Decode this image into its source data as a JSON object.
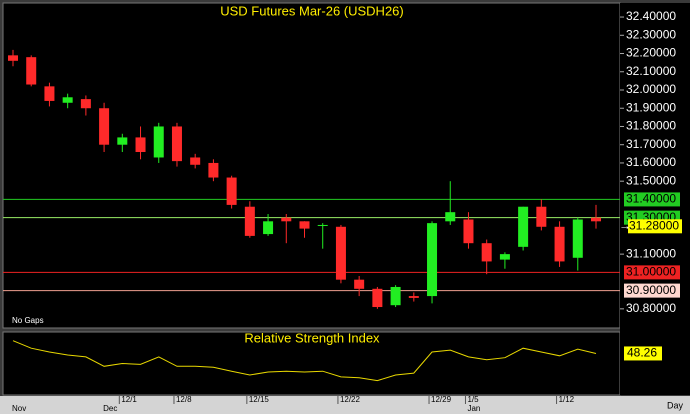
{
  "chart_data": {
    "type": "candlestick",
    "title": "USD Futures Mar-26  (USDH26)",
    "annotation": "No Gaps",
    "period_label": "Day",
    "categories": [
      null,
      null,
      null,
      null,
      null,
      null,
      "12/1",
      null,
      null,
      "12/8",
      null,
      null,
      null,
      "12/15",
      null,
      null,
      null,
      null,
      "12/22",
      null,
      null,
      null,
      null,
      "12/29",
      null,
      "1/5",
      null,
      null,
      null,
      null,
      "1/12",
      null,
      null
    ],
    "month_labels": [
      "Nov",
      null,
      null,
      null,
      null,
      "Dec",
      null,
      null,
      null,
      null,
      null,
      null,
      null,
      null,
      null,
      null,
      null,
      null,
      null,
      null,
      null,
      null,
      null,
      null,
      null,
      "Jan",
      null,
      null,
      null,
      null,
      null,
      null,
      null
    ],
    "open": [
      32.19,
      32.18,
      32.02,
      31.93,
      31.95,
      31.9,
      31.7,
      31.74,
      31.63,
      31.8,
      31.63,
      31.6,
      31.52,
      31.36,
      31.21,
      31.3,
      31.28,
      31.26,
      31.25,
      30.96,
      30.91,
      30.82,
      30.87,
      30.87,
      31.28,
      31.29,
      31.16,
      31.07,
      31.14,
      31.36,
      31.25,
      31.08,
      31.3
    ],
    "high": [
      32.22,
      32.19,
      32.04,
      31.98,
      31.97,
      31.93,
      31.76,
      31.8,
      31.82,
      31.82,
      31.65,
      31.62,
      31.53,
      31.39,
      31.32,
      31.32,
      31.28,
      31.27,
      31.26,
      30.98,
      30.92,
      30.93,
      30.89,
      31.28,
      31.5,
      31.33,
      31.18,
      31.11,
      31.36,
      31.4,
      31.28,
      31.3,
      31.37
    ],
    "low": [
      32.13,
      32.02,
      31.91,
      31.9,
      31.86,
      31.66,
      31.66,
      31.62,
      31.6,
      31.58,
      31.57,
      31.5,
      31.35,
      31.19,
      31.2,
      31.16,
      31.19,
      31.13,
      30.94,
      30.87,
      30.8,
      30.81,
      30.84,
      30.83,
      31.26,
      31.13,
      30.99,
      31.02,
      31.12,
      31.23,
      31.03,
      31.01,
      31.24
    ],
    "close": [
      32.16,
      32.03,
      31.94,
      31.96,
      31.9,
      31.7,
      31.74,
      31.66,
      31.8,
      31.61,
      31.59,
      31.52,
      31.37,
      31.2,
      31.28,
      31.28,
      31.24,
      31.26,
      30.96,
      30.91,
      30.81,
      30.92,
      30.86,
      31.27,
      31.33,
      31.16,
      31.06,
      31.1,
      31.36,
      31.25,
      31.06,
      31.29,
      31.28
    ],
    "last_label": "31.28000",
    "up_color": "#22ee22",
    "down_color": "#ff2a2a",
    "ylim": [
      30.695,
      32.477
    ],
    "yticks": [
      {
        "value": 30.8,
        "label": "30.80000"
      },
      {
        "value": 31.1,
        "label": "31.10000"
      },
      {
        "value": 31.5,
        "label": "31.50000"
      },
      {
        "value": 31.6,
        "label": "31.60000"
      },
      {
        "value": 31.7,
        "label": "31.70000"
      },
      {
        "value": 31.8,
        "label": "31.80000"
      },
      {
        "value": 31.9,
        "label": "31.90000"
      },
      {
        "value": 32.0,
        "label": "32.00000"
      },
      {
        "value": 32.1,
        "label": "32.10000"
      },
      {
        "value": 32.2,
        "label": "32.20000"
      },
      {
        "value": 32.3,
        "label": "32.30000"
      },
      {
        "value": 32.4,
        "label": "32.40000"
      }
    ],
    "levels": [
      {
        "value": 31.4,
        "label": "31.40000",
        "color": "#22cc22",
        "label_bg": "#22cc22"
      },
      {
        "value": 31.3,
        "label": "31.30000",
        "color": "#99ee66",
        "label_bg": "#22cc22"
      },
      {
        "value": 31.0,
        "label": "31.00000",
        "color": "#ee2222",
        "label_bg": "#ee2222"
      },
      {
        "value": 30.9,
        "label": "30.90000",
        "color": "#f0a090",
        "label_bg": "#ffd8d0"
      }
    ],
    "indicator": {
      "title": "Relative Strength Index",
      "color": "#e8d800",
      "ylim": [
        25,
        60
      ],
      "values": [
        55.6,
        51.3,
        49.1,
        47.4,
        46.3,
        40.9,
        42.5,
        42.0,
        46.3,
        40.9,
        40.9,
        40.3,
        38.1,
        35.9,
        37.6,
        38.1,
        37.6,
        38.1,
        34.8,
        34.3,
        32.7,
        35.9,
        37.0,
        49.1,
        50.2,
        46.3,
        44.7,
        45.8,
        51.3,
        49.1,
        46.9,
        50.7,
        48.26
      ]
    }
  }
}
